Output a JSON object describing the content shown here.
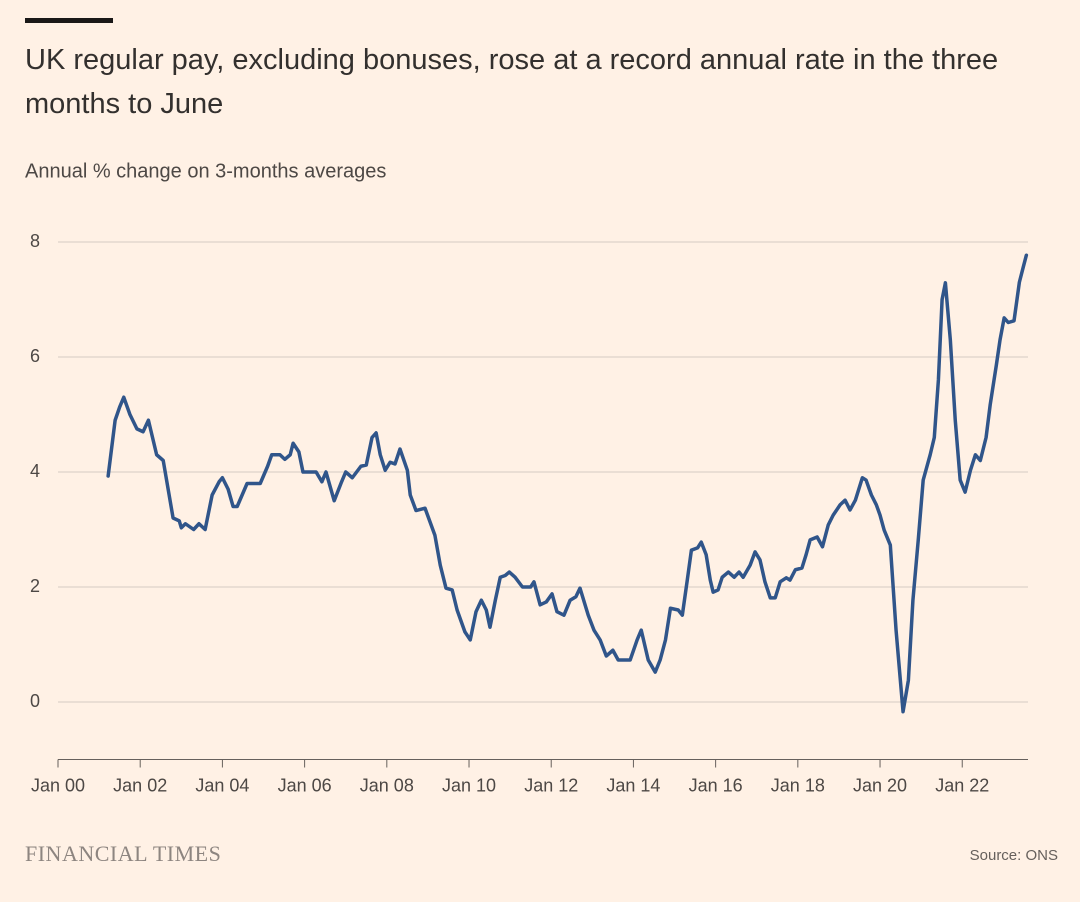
{
  "chart_data": {
    "type": "line",
    "title": "UK regular pay, excluding bonuses, rose at a record annual rate in the three months to June",
    "subtitle": "Annual % change on 3-months averages",
    "publisher": "FINANCIAL TIMES",
    "source": "Source: ONS",
    "xlim": [
      2000,
      2023.6
    ],
    "ylim": [
      -1,
      8
    ],
    "yticks": [
      0,
      2,
      4,
      6,
      8
    ],
    "xticks": [
      {
        "value": 2000,
        "label": "Jan 00"
      },
      {
        "value": 2002,
        "label": "Jan 02"
      },
      {
        "value": 2004,
        "label": "Jan 04"
      },
      {
        "value": 2006,
        "label": "Jan 06"
      },
      {
        "value": 2008,
        "label": "Jan 08"
      },
      {
        "value": 2010,
        "label": "Jan 10"
      },
      {
        "value": 2012,
        "label": "Jan 12"
      },
      {
        "value": 2014,
        "label": "Jan 14"
      },
      {
        "value": 2016,
        "label": "Jan 16"
      },
      {
        "value": 2018,
        "label": "Jan 18"
      },
      {
        "value": 2020,
        "label": "Jan 20"
      },
      {
        "value": 2022,
        "label": "Jan 22"
      }
    ],
    "grid": true,
    "color": "#30558a",
    "x": [
      2001.22,
      2001.39,
      2001.5,
      2001.6,
      2001.75,
      2001.92,
      2002.07,
      2002.2,
      2002.4,
      2002.56,
      2002.8,
      2002.95,
      2003.0,
      2003.1,
      2003.3,
      2003.43,
      2003.58,
      2003.75,
      2003.92,
      2004.0,
      2004.14,
      2004.26,
      2004.36,
      2004.6,
      2004.92,
      2005.1,
      2005.2,
      2005.4,
      2005.52,
      2005.65,
      2005.72,
      2005.86,
      2005.96,
      2006.28,
      2006.42,
      2006.52,
      2006.72,
      2006.9,
      2007.0,
      2007.16,
      2007.37,
      2007.5,
      2007.64,
      2007.74,
      2007.84,
      2007.96,
      2008.08,
      2008.2,
      2008.32,
      2008.5,
      2008.57,
      2008.71,
      2008.93,
      2009.17,
      2009.3,
      2009.44,
      2009.59,
      2009.71,
      2009.9,
      2010.03,
      2010.17,
      2010.3,
      2010.42,
      2010.51,
      2010.64,
      2010.76,
      2010.88,
      2010.98,
      2011.12,
      2011.3,
      2011.5,
      2011.58,
      2011.73,
      2011.88,
      2012.02,
      2012.14,
      2012.31,
      2012.46,
      2012.6,
      2012.7,
      2012.9,
      2013.04,
      2013.19,
      2013.34,
      2013.5,
      2013.63,
      2013.92,
      2014.09,
      2014.19,
      2014.36,
      2014.53,
      2014.65,
      2014.78,
      2014.9,
      2015.09,
      2015.19,
      2015.31,
      2015.41,
      2015.56,
      2015.65,
      2015.77,
      2015.87,
      2015.94,
      2016.06,
      2016.16,
      2016.31,
      2016.45,
      2016.57,
      2016.67,
      2016.84,
      2016.96,
      2017.08,
      2017.2,
      2017.33,
      2017.45,
      2017.57,
      2017.72,
      2017.81,
      2017.94,
      2018.1,
      2018.2,
      2018.3,
      2018.47,
      2018.6,
      2018.74,
      2018.86,
      2019.03,
      2019.15,
      2019.27,
      2019.4,
      2019.57,
      2019.66,
      2019.79,
      2019.91,
      2020.0,
      2020.1,
      2020.25,
      2020.39,
      2020.56,
      2020.69,
      2020.8,
      2020.93,
      2021.05,
      2021.22,
      2021.32,
      2021.42,
      2021.51,
      2021.59,
      2021.71,
      2021.83,
      2021.95,
      2022.07,
      2022.2,
      2022.32,
      2022.44,
      2022.58,
      2022.68,
      2022.83,
      2022.92,
      2023.02,
      2023.12,
      2023.26,
      2023.39,
      2023.48,
      2023.56
    ],
    "values": [
      3.93,
      4.9,
      5.13,
      5.3,
      5.0,
      4.75,
      4.7,
      4.9,
      4.3,
      4.2,
      3.2,
      3.15,
      3.03,
      3.1,
      3.0,
      3.1,
      3.0,
      3.6,
      3.83,
      3.9,
      3.7,
      3.4,
      3.4,
      3.8,
      3.8,
      4.1,
      4.3,
      4.3,
      4.22,
      4.3,
      4.5,
      4.35,
      4.0,
      4.0,
      3.83,
      4.0,
      3.5,
      3.83,
      4.0,
      3.9,
      4.1,
      4.12,
      4.6,
      4.68,
      4.3,
      4.03,
      4.17,
      4.14,
      4.4,
      4.03,
      3.6,
      3.33,
      3.37,
      2.9,
      2.38,
      1.98,
      1.95,
      1.6,
      1.22,
      1.08,
      1.57,
      1.77,
      1.6,
      1.3,
      1.77,
      2.17,
      2.2,
      2.26,
      2.17,
      2.0,
      2.0,
      2.09,
      1.69,
      1.74,
      1.88,
      1.57,
      1.51,
      1.77,
      1.83,
      1.98,
      1.51,
      1.25,
      1.08,
      0.8,
      0.9,
      0.73,
      0.73,
      1.08,
      1.25,
      0.73,
      0.52,
      0.73,
      1.08,
      1.63,
      1.6,
      1.51,
      2.12,
      2.64,
      2.68,
      2.78,
      2.56,
      2.12,
      1.91,
      1.95,
      2.17,
      2.26,
      2.17,
      2.26,
      2.17,
      2.38,
      2.61,
      2.47,
      2.09,
      1.81,
      1.81,
      2.09,
      2.16,
      2.12,
      2.3,
      2.33,
      2.56,
      2.82,
      2.87,
      2.7,
      3.08,
      3.25,
      3.43,
      3.51,
      3.34,
      3.51,
      3.9,
      3.86,
      3.6,
      3.43,
      3.25,
      2.99,
      2.73,
      1.25,
      -0.17,
      0.38,
      1.77,
      2.82,
      3.86,
      4.3,
      4.6,
      5.6,
      7.0,
      7.29,
      6.3,
      4.9,
      3.86,
      3.65,
      4.03,
      4.3,
      4.2,
      4.6,
      5.17,
      5.86,
      6.3,
      6.68,
      6.6,
      6.63,
      7.3,
      7.55,
      7.77
    ]
  }
}
